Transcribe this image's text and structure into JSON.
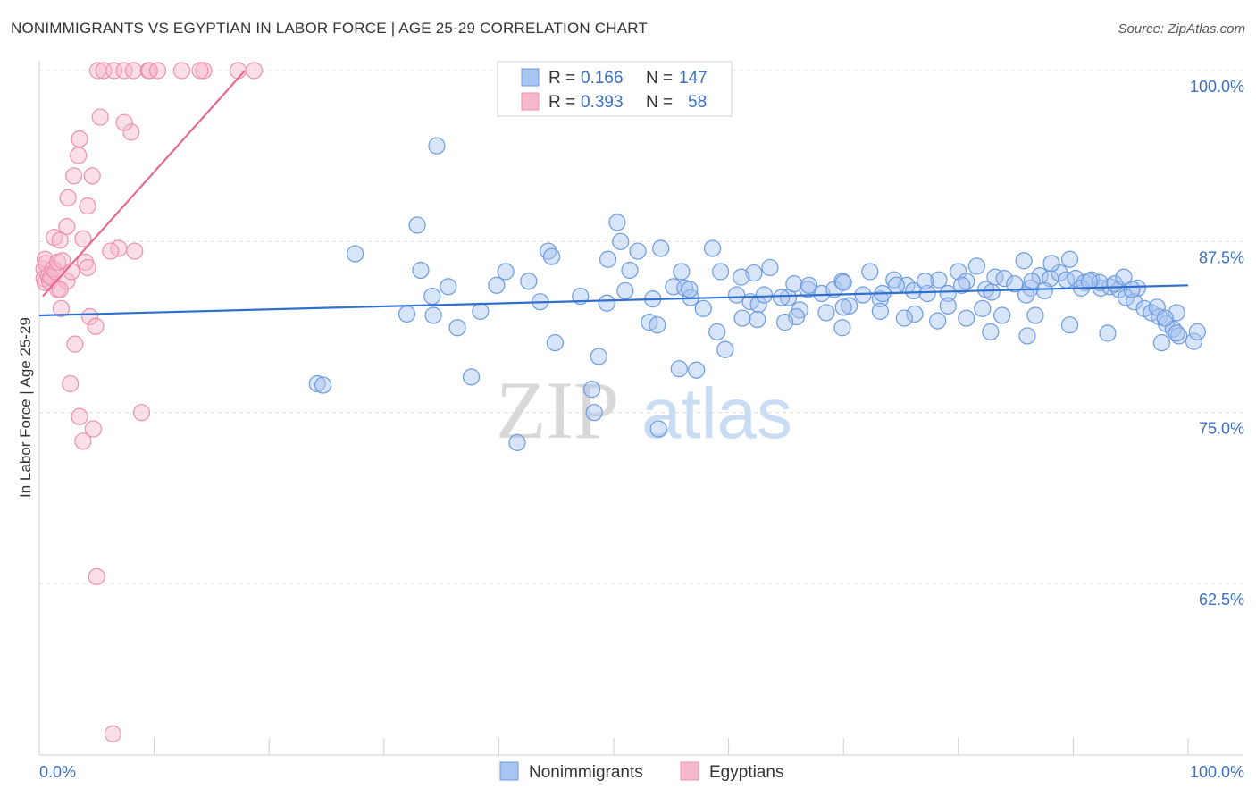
{
  "header": {
    "title": "NONIMMIGRANTS VS EGYPTIAN IN LABOR FORCE | AGE 25-29 CORRELATION CHART",
    "source": "Source: ZipAtlas.com"
  },
  "watermark": {
    "zip": "ZIP",
    "atlas": "atlas"
  },
  "legend": {
    "rows": [
      {
        "r_label": "R =",
        "r_value": "0.166",
        "n_label": "N =",
        "n_value": "147",
        "color": "#a8c4f0"
      },
      {
        "r_label": "R =",
        "r_value": "0.393",
        "n_label": "N =",
        "n_value": "58",
        "color": "#f6b8cb"
      }
    ]
  },
  "bottom_legend": {
    "items": [
      {
        "label": "Nonimmigrants",
        "color": "#a8c4f0"
      },
      {
        "label": "Egyptians",
        "color": "#f6b8cb"
      }
    ]
  },
  "chart_data": {
    "type": "scatter",
    "title": "NONIMMIGRANTS VS EGYPTIAN IN LABOR FORCE | AGE 25-29 CORRELATION CHART",
    "xlabel": "",
    "ylabel": "In Labor Force | Age 25-29",
    "xlim": [
      0,
      100
    ],
    "ylim": [
      51,
      101.5
    ],
    "y_ticks": [
      {
        "value": 100,
        "label": "100.0%"
      },
      {
        "value": 87.5,
        "label": "87.5%"
      },
      {
        "value": 75,
        "label": "75.0%"
      },
      {
        "value": 62.5,
        "label": "62.5%"
      }
    ],
    "x_tick_labels": [
      {
        "value": 0,
        "label": "0.0%"
      },
      {
        "value": 100,
        "label": "100.0%"
      }
    ],
    "x_minor_ticks": [
      0,
      10,
      20,
      30,
      40,
      50,
      60,
      70,
      80,
      90,
      100
    ],
    "series": [
      {
        "name": "Nonimmigrants",
        "color": "#6b9be0",
        "fill": "#a8c4f0",
        "trend": {
          "x": [
            0,
            100
          ],
          "y": [
            82.1,
            84.3
          ],
          "color": "#2f6fd0"
        },
        "points": [
          [
            24.2,
            77.1
          ],
          [
            24.7,
            77.0
          ],
          [
            27.5,
            86.6
          ],
          [
            32.9,
            88.7
          ],
          [
            33.2,
            85.4
          ],
          [
            34.2,
            83.5
          ],
          [
            34.3,
            82.1
          ],
          [
            32.0,
            82.2
          ],
          [
            35.6,
            84.2
          ],
          [
            34.6,
            94.5
          ],
          [
            36.4,
            81.2
          ],
          [
            37.6,
            77.6
          ],
          [
            38.4,
            82.4
          ],
          [
            39.8,
            84.3
          ],
          [
            42.6,
            84.6
          ],
          [
            43.6,
            83.1
          ],
          [
            44.3,
            86.8
          ],
          [
            44.9,
            80.1
          ],
          [
            47.1,
            83.5
          ],
          [
            49.4,
            83.0
          ],
          [
            48.7,
            79.1
          ],
          [
            49.5,
            86.2
          ],
          [
            50.3,
            88.9
          ],
          [
            50.6,
            87.5
          ],
          [
            51.4,
            85.4
          ],
          [
            51.0,
            83.9
          ],
          [
            52.1,
            86.8
          ],
          [
            53.4,
            83.3
          ],
          [
            54.1,
            87.0
          ],
          [
            55.2,
            84.2
          ],
          [
            55.9,
            85.3
          ],
          [
            56.2,
            84.1
          ],
          [
            56.7,
            83.4
          ],
          [
            58.6,
            87.0
          ],
          [
            59.3,
            85.3
          ],
          [
            60.7,
            83.6
          ],
          [
            61.9,
            83.1
          ],
          [
            62.2,
            85.2
          ],
          [
            62.6,
            82.9
          ],
          [
            63.1,
            83.6
          ],
          [
            63.6,
            85.6
          ],
          [
            65.2,
            83.4
          ],
          [
            65.7,
            84.4
          ],
          [
            66.2,
            82.5
          ],
          [
            66.9,
            84.0
          ],
          [
            68.1,
            83.7
          ],
          [
            68.5,
            82.3
          ],
          [
            69.2,
            84.0
          ],
          [
            69.9,
            84.6
          ],
          [
            70.5,
            82.8
          ],
          [
            71.7,
            83.6
          ],
          [
            72.3,
            85.3
          ],
          [
            73.2,
            83.3
          ],
          [
            74.4,
            84.7
          ],
          [
            75.5,
            84.3
          ],
          [
            76.1,
            83.9
          ],
          [
            77.3,
            83.7
          ],
          [
            78.3,
            84.7
          ],
          [
            79.1,
            83.7
          ],
          [
            80.0,
            85.3
          ],
          [
            80.7,
            84.6
          ],
          [
            81.6,
            85.7
          ],
          [
            82.4,
            84.0
          ],
          [
            83.2,
            84.9
          ],
          [
            84.0,
            84.8
          ],
          [
            84.9,
            84.4
          ],
          [
            85.7,
            86.1
          ],
          [
            86.3,
            84.1
          ],
          [
            87.1,
            85.0
          ],
          [
            88.0,
            84.8
          ],
          [
            88.8,
            85.2
          ],
          [
            89.4,
            84.7
          ],
          [
            90.2,
            84.8
          ],
          [
            91.0,
            84.5
          ],
          [
            91.6,
            84.7
          ],
          [
            92.4,
            84.1
          ],
          [
            93.2,
            84.2
          ],
          [
            94.0,
            84.0
          ],
          [
            94.6,
            83.4
          ],
          [
            95.3,
            83.1
          ],
          [
            96.2,
            82.6
          ],
          [
            96.8,
            82.3
          ],
          [
            97.5,
            82.0
          ],
          [
            98.1,
            81.5
          ],
          [
            98.7,
            81.1
          ],
          [
            99.2,
            80.6
          ],
          [
            100.5,
            80.2
          ],
          [
            100.8,
            80.9
          ],
          [
            82.8,
            80.9
          ],
          [
            86.0,
            80.6
          ],
          [
            89.7,
            81.4
          ],
          [
            93.0,
            80.8
          ],
          [
            48.1,
            76.7
          ],
          [
            48.3,
            75.0
          ],
          [
            55.7,
            78.2
          ],
          [
            57.2,
            78.1
          ],
          [
            59.7,
            79.6
          ],
          [
            53.1,
            81.6
          ],
          [
            53.8,
            81.4
          ],
          [
            61.2,
            81.9
          ],
          [
            62.5,
            81.8
          ],
          [
            65.9,
            82.0
          ],
          [
            70.0,
            82.7
          ],
          [
            73.2,
            82.4
          ],
          [
            76.2,
            82.2
          ],
          [
            79.1,
            82.8
          ],
          [
            82.1,
            82.6
          ],
          [
            86.4,
            84.6
          ],
          [
            88.1,
            85.9
          ],
          [
            89.7,
            86.2
          ],
          [
            92.3,
            84.5
          ],
          [
            95.6,
            84.1
          ],
          [
            99.0,
            82.3
          ],
          [
            53.9,
            73.8
          ],
          [
            41.6,
            72.8
          ],
          [
            40.6,
            85.3
          ],
          [
            44.6,
            86.4
          ],
          [
            56.6,
            84.0
          ],
          [
            57.8,
            82.6
          ],
          [
            61.1,
            84.9
          ],
          [
            64.6,
            83.4
          ],
          [
            67.0,
            84.3
          ],
          [
            70.0,
            84.5
          ],
          [
            73.4,
            83.7
          ],
          [
            74.6,
            84.3
          ],
          [
            77.1,
            84.6
          ],
          [
            80.3,
            84.3
          ],
          [
            82.9,
            83.8
          ],
          [
            85.9,
            83.6
          ],
          [
            87.5,
            83.9
          ],
          [
            90.7,
            84.1
          ],
          [
            93.6,
            84.4
          ],
          [
            95.1,
            84.0
          ],
          [
            97.3,
            82.7
          ],
          [
            59.0,
            80.9
          ],
          [
            64.9,
            81.6
          ],
          [
            69.9,
            81.2
          ],
          [
            75.3,
            81.9
          ],
          [
            78.2,
            81.7
          ],
          [
            80.7,
            81.9
          ],
          [
            83.8,
            82.1
          ],
          [
            86.7,
            82.1
          ],
          [
            91.4,
            84.6
          ],
          [
            94.4,
            84.9
          ],
          [
            97.7,
            80.1
          ],
          [
            98.0,
            81.9
          ],
          [
            99.0,
            80.8
          ]
        ]
      },
      {
        "name": "Egyptians",
        "color": "#ee8fae",
        "fill": "#f6b8cb",
        "trend": {
          "x": [
            0.3,
            17.9
          ],
          "y": [
            83.5,
            100.0
          ],
          "color": "#e8688f"
        },
        "points": [
          [
            0.4,
            85.5
          ],
          [
            0.5,
            86.2
          ],
          [
            0.6,
            85.9
          ],
          [
            0.4,
            84.8
          ],
          [
            0.5,
            84.5
          ],
          [
            0.8,
            85.0
          ],
          [
            0.9,
            84.6
          ],
          [
            1.0,
            84.9
          ],
          [
            1.2,
            85.5
          ],
          [
            1.4,
            85.3
          ],
          [
            1.6,
            84.0
          ],
          [
            1.3,
            87.8
          ],
          [
            1.6,
            86.0
          ],
          [
            1.8,
            87.6
          ],
          [
            2.0,
            86.1
          ],
          [
            1.9,
            82.6
          ],
          [
            2.4,
            84.6
          ],
          [
            2.8,
            85.3
          ],
          [
            2.4,
            88.6
          ],
          [
            2.5,
            90.7
          ],
          [
            3.0,
            92.3
          ],
          [
            3.4,
            93.8
          ],
          [
            3.8,
            87.7
          ],
          [
            4.0,
            86.0
          ],
          [
            4.2,
            85.6
          ],
          [
            4.6,
            92.3
          ],
          [
            4.2,
            90.1
          ],
          [
            3.5,
            95.0
          ],
          [
            4.4,
            82.0
          ],
          [
            4.9,
            81.3
          ],
          [
            5.3,
            96.6
          ],
          [
            5.1,
            100.0
          ],
          [
            5.6,
            100.0
          ],
          [
            6.5,
            100.0
          ],
          [
            7.4,
            100.0
          ],
          [
            8.2,
            100.0
          ],
          [
            9.5,
            100.0
          ],
          [
            8.0,
            95.5
          ],
          [
            7.4,
            96.2
          ],
          [
            6.9,
            87.0
          ],
          [
            6.2,
            86.8
          ],
          [
            3.1,
            80.0
          ],
          [
            2.7,
            77.1
          ],
          [
            3.5,
            74.7
          ],
          [
            3.8,
            72.9
          ],
          [
            4.7,
            73.8
          ],
          [
            8.3,
            86.8
          ],
          [
            8.9,
            75.0
          ],
          [
            5.0,
            63.0
          ],
          [
            6.4,
            51.5
          ],
          [
            17.3,
            100.0
          ],
          [
            18.7,
            100.0
          ],
          [
            12.4,
            100.0
          ],
          [
            14.3,
            100.0
          ],
          [
            9.6,
            100.0
          ],
          [
            14.0,
            100.0
          ],
          [
            10.3,
            100.0
          ],
          [
            1.8,
            84.0
          ]
        ]
      }
    ]
  }
}
